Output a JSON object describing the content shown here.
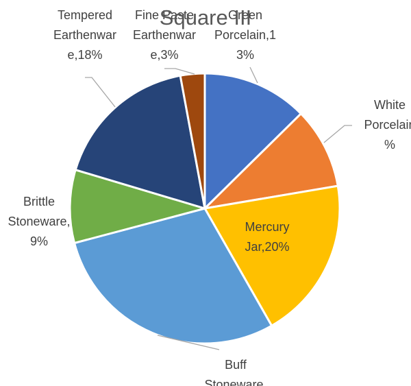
{
  "chart_data": {
    "type": "pie",
    "title": "Square III",
    "categories": [
      "Green Porcelain",
      "White Porcelain",
      "Mercury Jar",
      "Buff Stoneware",
      "Brittle Stoneware",
      "Tempered Earthenware",
      "Fine Paste Earthenware"
    ],
    "values": [
      13,
      10,
      20,
      30,
      9,
      18,
      3
    ],
    "colors": [
      "#4472C4",
      "#ED7D31",
      "#FFC000",
      "#5B9BD5",
      "#70AD47",
      "#264478",
      "#9E480E"
    ],
    "data_labels": [
      [
        "Green",
        "Porcelain,1",
        "3%"
      ],
      [
        "White",
        "Porcelain",
        "%"
      ],
      [
        "Mercury",
        "Jar,20%"
      ],
      [
        "Buff",
        "Stoneware,"
      ],
      [
        "Brittle",
        "Stoneware,",
        "9%"
      ],
      [
        "Tempered",
        "Earthenwar",
        "e,18%"
      ],
      [
        "Fine Paste",
        "Earthenwar",
        "e,3%"
      ]
    ]
  }
}
